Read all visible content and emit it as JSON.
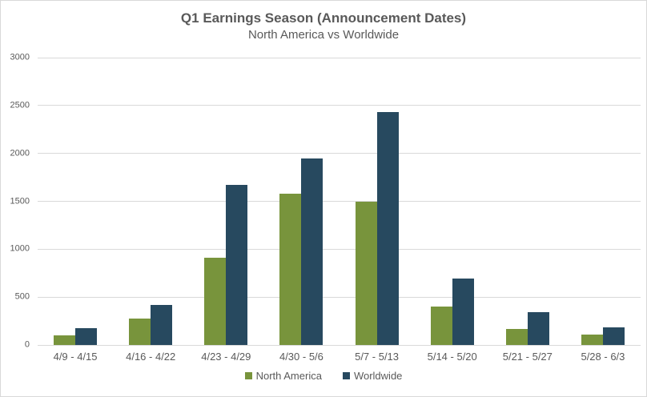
{
  "chart_data": {
    "type": "bar",
    "title": "Q1 Earnings Season (Announcement Dates)",
    "subtitle": "North America vs Worldwide",
    "categories": [
      "4/9 - 4/15",
      "4/16 - 4/22",
      "4/23 - 4/29",
      "4/30 - 5/6",
      "5/7 - 5/13",
      "5/14 - 5/20",
      "5/21 - 5/27",
      "5/28 - 6/3"
    ],
    "series": [
      {
        "name": "North America",
        "color": "#78943C",
        "values": [
          100,
          275,
          910,
          1580,
          1500,
          400,
          165,
          105
        ]
      },
      {
        "name": "Worldwide",
        "color": "#27495F",
        "values": [
          175,
          420,
          1670,
          1945,
          2430,
          690,
          345,
          180
        ]
      }
    ],
    "xlabel": "",
    "ylabel": "",
    "ylim": [
      0,
      3000
    ],
    "yticks": [
      0,
      500,
      1000,
      1500,
      2000,
      2500,
      3000
    ],
    "grid": true,
    "legend_position": "bottom",
    "colors": {
      "gridline": "#d9d9d9",
      "text": "#595959",
      "background": "#ffffff",
      "border": "#d9d9d9"
    }
  }
}
